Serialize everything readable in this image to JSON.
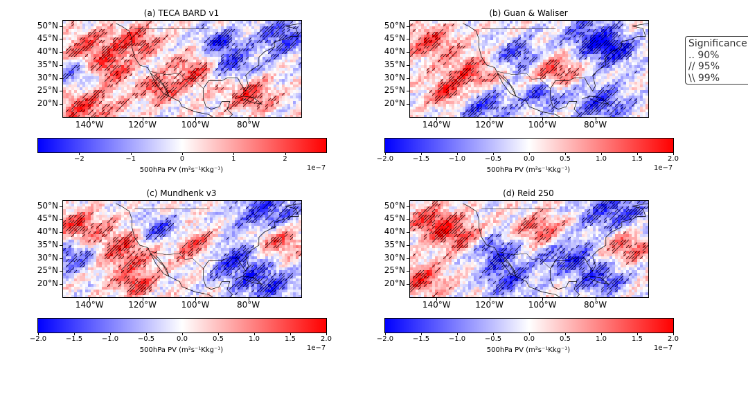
{
  "panels": [
    {
      "title": "(a) TECA BARD v1"
    },
    {
      "title": "(b) Guan & Waliser"
    },
    {
      "title": "(c) Mundhenk v3"
    },
    {
      "title": "(d) Reid 250"
    }
  ],
  "lat_ticks": [
    "50°N",
    "45°N",
    "40°N",
    "35°N",
    "30°N",
    "25°N",
    "20°N"
  ],
  "lon_ticks": [
    "140°W",
    "120°W",
    "100°W",
    "80°W"
  ],
  "colorbars": [
    {
      "ticks": [
        "−2",
        "−1",
        "0",
        "1",
        "2"
      ],
      "range": [
        -2.8,
        2.8
      ],
      "tick_values": [
        -2,
        -1,
        0,
        1,
        2
      ],
      "label": "500hPa PV (m²s⁻¹Kkg⁻¹)",
      "exponent": "1e−7"
    },
    {
      "ticks": [
        "−2.0",
        "−1.5",
        "−1.0",
        "−0.5",
        "0.0",
        "0.5",
        "1.0",
        "1.5",
        "2.0"
      ],
      "range": [
        -2.0,
        2.0
      ],
      "tick_values": [
        -2.0,
        -1.5,
        -1.0,
        -0.5,
        0.0,
        0.5,
        1.0,
        1.5,
        2.0
      ],
      "label": "500hPa PV (m²s⁻¹Kkg⁻¹)",
      "exponent": "1e−7"
    },
    {
      "ticks": [
        "−2.0",
        "−1.5",
        "−1.0",
        "−0.5",
        "0.0",
        "0.5",
        "1.0",
        "1.5",
        "2.0"
      ],
      "range": [
        -2.0,
        2.0
      ],
      "tick_values": [
        -2.0,
        -1.5,
        -1.0,
        -0.5,
        0.0,
        0.5,
        1.0,
        1.5,
        2.0
      ],
      "label": "500hPa PV (m²s⁻¹Kkg⁻¹)",
      "exponent": "1e−7"
    },
    {
      "ticks": [
        "−2.0",
        "−1.5",
        "−1.0",
        "−0.5",
        "0.0",
        "0.5",
        "1.0",
        "1.5",
        "2.0"
      ],
      "range": [
        -2.0,
        2.0
      ],
      "tick_values": [
        -2.0,
        -1.5,
        -1.0,
        -0.5,
        0.0,
        0.5,
        1.0,
        1.5,
        2.0
      ],
      "label": "500hPa PV (m²s⁻¹Kkg⁻¹)",
      "exponent": "1e−7"
    }
  ],
  "legend": {
    "title": "Significance",
    "items": [
      ".. 90%",
      "// 95%",
      "\\\\ 99%"
    ]
  },
  "chart_data": {
    "type": "heatmap",
    "colormap": "bwr",
    "colors": {
      "negative": "#0000ff",
      "zero": "#ffffff",
      "positive": "#ff0000"
    },
    "lat_range": [
      15,
      52
    ],
    "lon_range": [
      -150,
      -60
    ],
    "panels": [
      {
        "title": "(a) TECA BARD v1",
        "clim": [
          -2.8e-07,
          2.8e-07
        ]
      },
      {
        "title": "(b) Guan & Waliser",
        "clim": [
          -2e-07,
          2e-07
        ]
      },
      {
        "title": "(c) Mundhenk v3",
        "clim": [
          -2e-07,
          2e-07
        ]
      },
      {
        "title": "(d) Reid 250",
        "clim": [
          -2e-07,
          2e-07
        ]
      }
    ]
  }
}
